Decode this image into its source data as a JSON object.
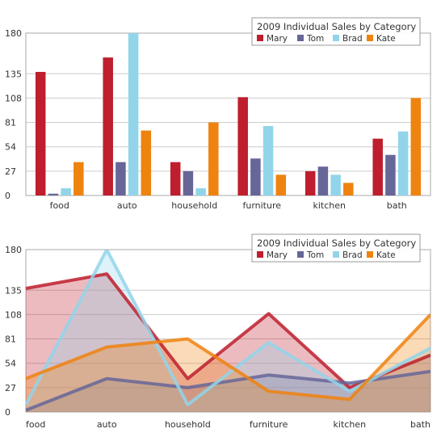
{
  "colors": {
    "Mary": "#be1e2d",
    "Tom": "#666699",
    "Brad": "#92d5ea",
    "Kate": "#ee8310",
    "grid": "#cccccc",
    "axis": "#777777",
    "plot_border": "#aaaaaa",
    "text": "#333333"
  },
  "chart_data": [
    {
      "type": "bar",
      "title": "2009 Individual Sales by Category",
      "legend_position": "top-right",
      "grid": true,
      "categories": [
        "food",
        "auto",
        "household",
        "furniture",
        "kitchen",
        "bath"
      ],
      "yticks": [
        0,
        27,
        54,
        81,
        108,
        135,
        180
      ],
      "ylim": [
        0,
        180
      ],
      "series": [
        {
          "name": "Mary",
          "values": [
            137,
            153,
            37,
            109,
            27,
            63
          ]
        },
        {
          "name": "Tom",
          "values": [
            2,
            37,
            27,
            41,
            32,
            45
          ]
        },
        {
          "name": "Brad",
          "values": [
            8,
            188,
            8,
            77,
            23,
            71
          ]
        },
        {
          "name": "Kate",
          "values": [
            37,
            72,
            81,
            23,
            14,
            108
          ]
        }
      ]
    },
    {
      "type": "area",
      "title": "2009 Individual Sales by Category",
      "legend_position": "top-right",
      "grid": true,
      "categories": [
        "food",
        "auto",
        "household",
        "furniture",
        "kitchen",
        "bath"
      ],
      "yticks": [
        0,
        27,
        54,
        81,
        108,
        135,
        180
      ],
      "ylim": [
        0,
        180
      ],
      "series": [
        {
          "name": "Mary",
          "values": [
            137,
            153,
            37,
            109,
            27,
            63
          ]
        },
        {
          "name": "Tom",
          "values": [
            2,
            37,
            27,
            41,
            32,
            45
          ]
        },
        {
          "name": "Brad",
          "values": [
            8,
            188,
            8,
            77,
            23,
            71
          ]
        },
        {
          "name": "Kate",
          "values": [
            37,
            72,
            81,
            23,
            14,
            108
          ]
        }
      ]
    }
  ]
}
